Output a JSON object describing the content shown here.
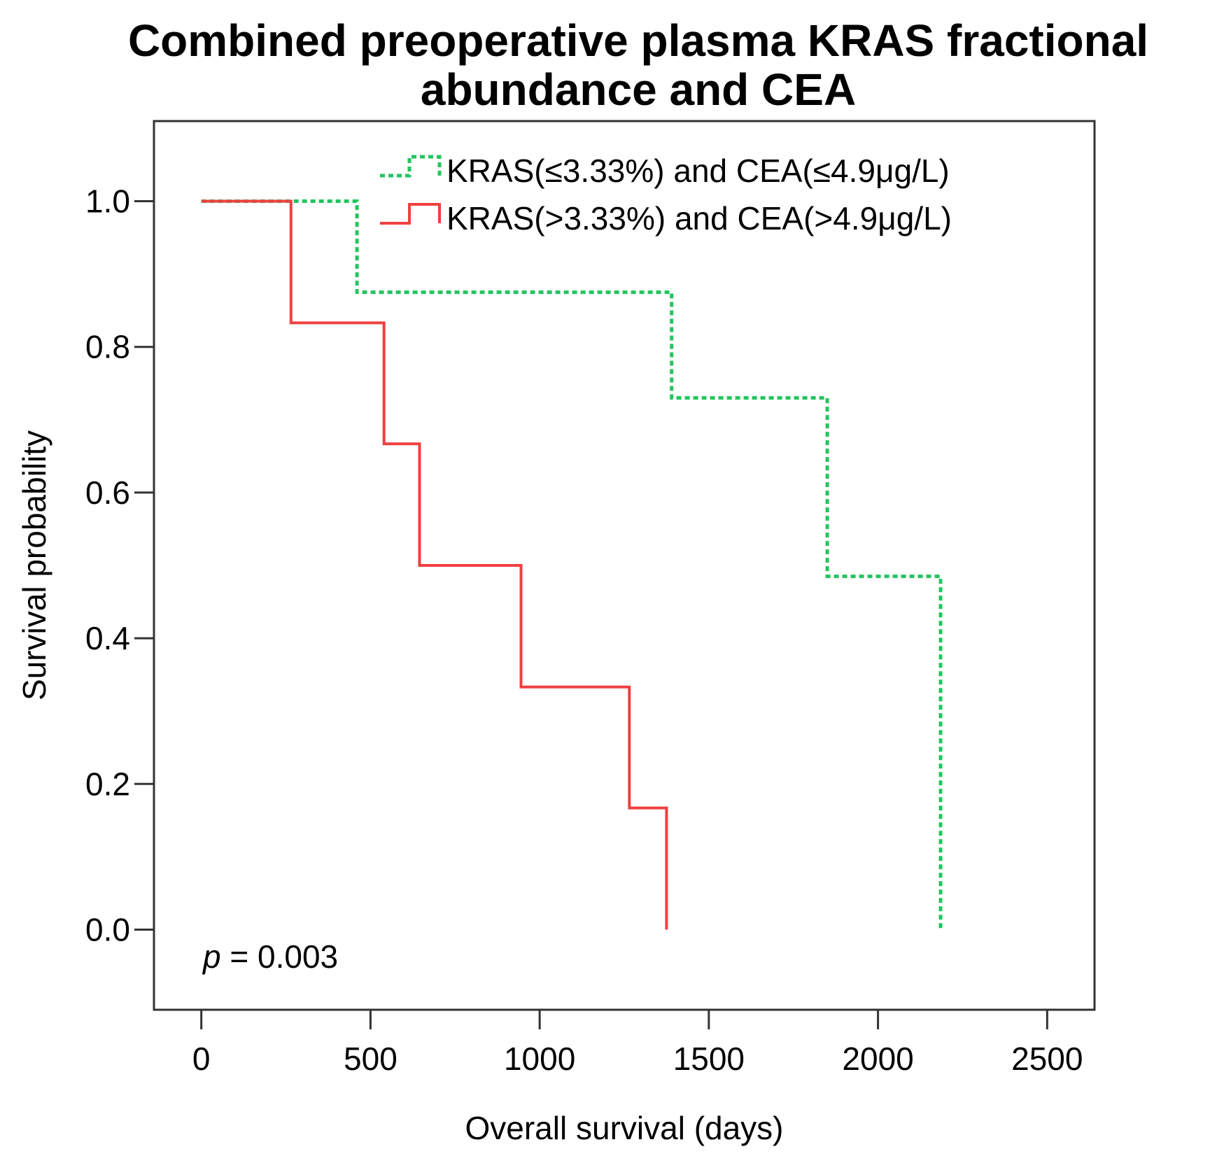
{
  "chart_data": {
    "type": "line",
    "subtype": "kaplan-meier step plot",
    "title_lines": [
      "Combined preoperative plasma KRAS fractional",
      "abundance and CEA"
    ],
    "xlabel": "Overall survival (days)",
    "ylabel": "Survival probability",
    "xlim": [
      -140,
      2640
    ],
    "ylim": [
      -0.11,
      1.11
    ],
    "xticks": [
      0,
      500,
      1000,
      1500,
      2000,
      2500
    ],
    "xtick_labels": [
      "0",
      "500",
      "1000",
      "1500",
      "2000",
      "2500"
    ],
    "yticks": [
      0.0,
      0.2,
      0.4,
      0.6,
      0.8,
      1.0
    ],
    "ytick_labels": [
      "0.0",
      "0.2",
      "0.4",
      "0.6",
      "0.8",
      "1.0"
    ],
    "grid": false,
    "legend_position": "top-right",
    "series": [
      {
        "name": "KRAS(≤3.33%) and CEA(≤4.9μg/L)",
        "color": "#22c55e",
        "style": "dotted",
        "x": [
          0,
          460,
          460,
          1390,
          1390,
          1850,
          1850,
          2185,
          2185
        ],
        "y": [
          1.0,
          1.0,
          0.875,
          0.875,
          0.73,
          0.73,
          0.485,
          0.485,
          0.0
        ]
      },
      {
        "name": "KRAS(>3.33%) and CEA(>4.9μg/L)",
        "color": "#f04040",
        "style": "solid",
        "x": [
          0,
          265,
          265,
          540,
          540,
          645,
          645,
          945,
          945,
          1265,
          1265,
          1375,
          1375
        ],
        "y": [
          1.0,
          1.0,
          0.833,
          0.833,
          0.667,
          0.667,
          0.5,
          0.5,
          0.333,
          0.333,
          0.167,
          0.167,
          0.0
        ]
      }
    ],
    "annotation": {
      "italic_part": "p",
      "rest": " = 0.003"
    }
  }
}
